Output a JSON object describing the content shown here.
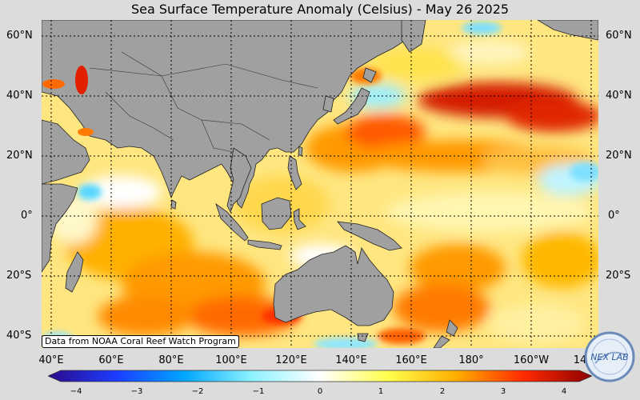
{
  "title": "Sea Surface Temperature Anomaly (Celsius) - May 26 2025",
  "lat_labels": [
    "60°N",
    "40°N",
    "20°N",
    "0°",
    "20°S",
    "40°S"
  ],
  "lon_labels": [
    "40°E",
    "60°E",
    "80°E",
    "100°E",
    "120°E",
    "140°E",
    "160°E",
    "180°",
    "160°W",
    "14"
  ],
  "credit": "Data from NOAA Coral Reef Watch Program",
  "colorbar": {
    "ticks": [
      "−4",
      "−3",
      "−2",
      "−1",
      "0",
      "1",
      "2",
      "3",
      "4"
    ],
    "colors": [
      "#2b0a8a",
      "#1c3cff",
      "#00a6ff",
      "#8ef2ff",
      "#ffffff",
      "#ffff4d",
      "#ffae00",
      "#ff2a00",
      "#8c0000"
    ]
  },
  "logo_text": "NEX LAB",
  "colors": {
    "land": "#a0a0a0",
    "background": "#dcdcdc",
    "warm_high": "#cc1a00",
    "warm_mid": "#ff8a00",
    "warm_low": "#ffe34d",
    "cool": "#7feaff"
  }
}
